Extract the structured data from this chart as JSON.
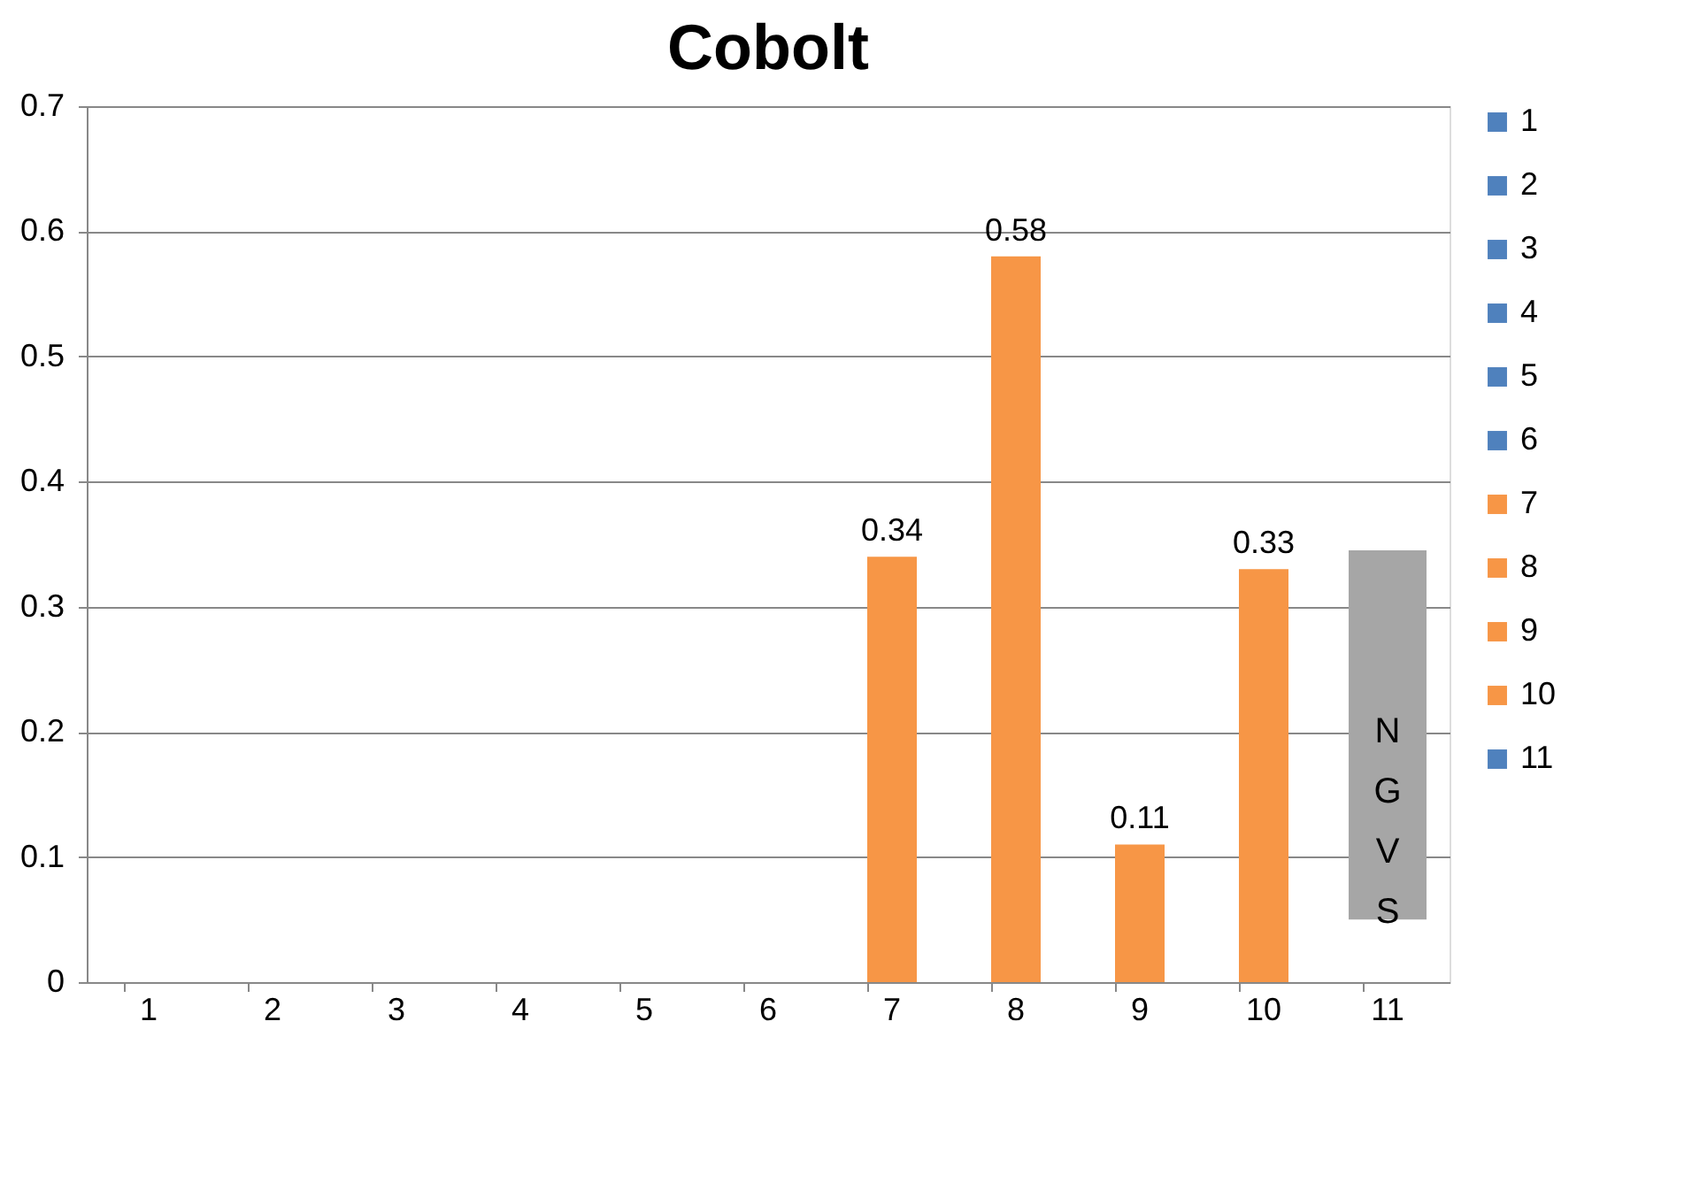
{
  "chart_data": {
    "type": "bar",
    "title": "Cobolt",
    "stacked": true,
    "categories": [
      "1",
      "2",
      "3",
      "4",
      "5",
      "6",
      "7",
      "8",
      "9",
      "10",
      "11"
    ],
    "series": [
      {
        "name": "1",
        "color": "#4f81bd",
        "values": [
          0,
          null,
          null,
          null,
          null,
          null,
          null,
          null,
          null,
          null,
          null
        ]
      },
      {
        "name": "2",
        "color": "#4f81bd",
        "values": [
          null,
          0,
          null,
          null,
          null,
          null,
          null,
          null,
          null,
          null,
          null
        ]
      },
      {
        "name": "3",
        "color": "#4f81bd",
        "values": [
          null,
          null,
          0,
          null,
          null,
          null,
          null,
          null,
          null,
          null,
          null
        ]
      },
      {
        "name": "4",
        "color": "#4f81bd",
        "values": [
          null,
          null,
          null,
          0,
          null,
          null,
          null,
          null,
          null,
          null,
          null
        ]
      },
      {
        "name": "5",
        "color": "#4f81bd",
        "values": [
          null,
          null,
          null,
          null,
          0,
          null,
          null,
          null,
          null,
          null,
          null
        ]
      },
      {
        "name": "6",
        "color": "#4f81bd",
        "values": [
          null,
          null,
          null,
          null,
          null,
          0,
          null,
          null,
          null,
          null,
          null
        ]
      },
      {
        "name": "7",
        "color": "#f79646",
        "values": [
          null,
          null,
          null,
          null,
          null,
          null,
          0.34,
          null,
          null,
          null,
          null
        ],
        "value_labels": [
          null,
          null,
          null,
          null,
          null,
          null,
          "0.34",
          null,
          null,
          null,
          null
        ]
      },
      {
        "name": "8",
        "color": "#f79646",
        "values": [
          null,
          null,
          null,
          null,
          null,
          null,
          null,
          0.58,
          null,
          null,
          null
        ],
        "value_labels": [
          null,
          null,
          null,
          null,
          null,
          null,
          null,
          "0.58",
          null,
          null,
          null
        ]
      },
      {
        "name": "9",
        "color": "#f79646",
        "values": [
          null,
          null,
          null,
          null,
          null,
          null,
          null,
          null,
          0.11,
          null,
          null
        ],
        "value_labels": [
          null,
          null,
          null,
          null,
          null,
          null,
          null,
          null,
          "0.11",
          null,
          null
        ]
      },
      {
        "name": "10",
        "color": "#f79646",
        "values": [
          null,
          null,
          null,
          null,
          null,
          null,
          null,
          null,
          null,
          0.33,
          null
        ],
        "value_labels": [
          null,
          null,
          null,
          null,
          null,
          null,
          null,
          null,
          null,
          "0.33",
          null
        ]
      },
      {
        "name": "11",
        "color": "#4f81bd",
        "values": [
          null,
          null,
          null,
          null,
          null,
          null,
          null,
          null,
          null,
          null,
          null
        ]
      }
    ],
    "ylim": [
      0,
      0.7
    ],
    "yticks": [
      0,
      0.1,
      0.2,
      0.3,
      0.4,
      0.5,
      0.6,
      0.7
    ],
    "grid": "y",
    "legend": "right",
    "annotations": [
      "NGVS"
    ]
  }
}
